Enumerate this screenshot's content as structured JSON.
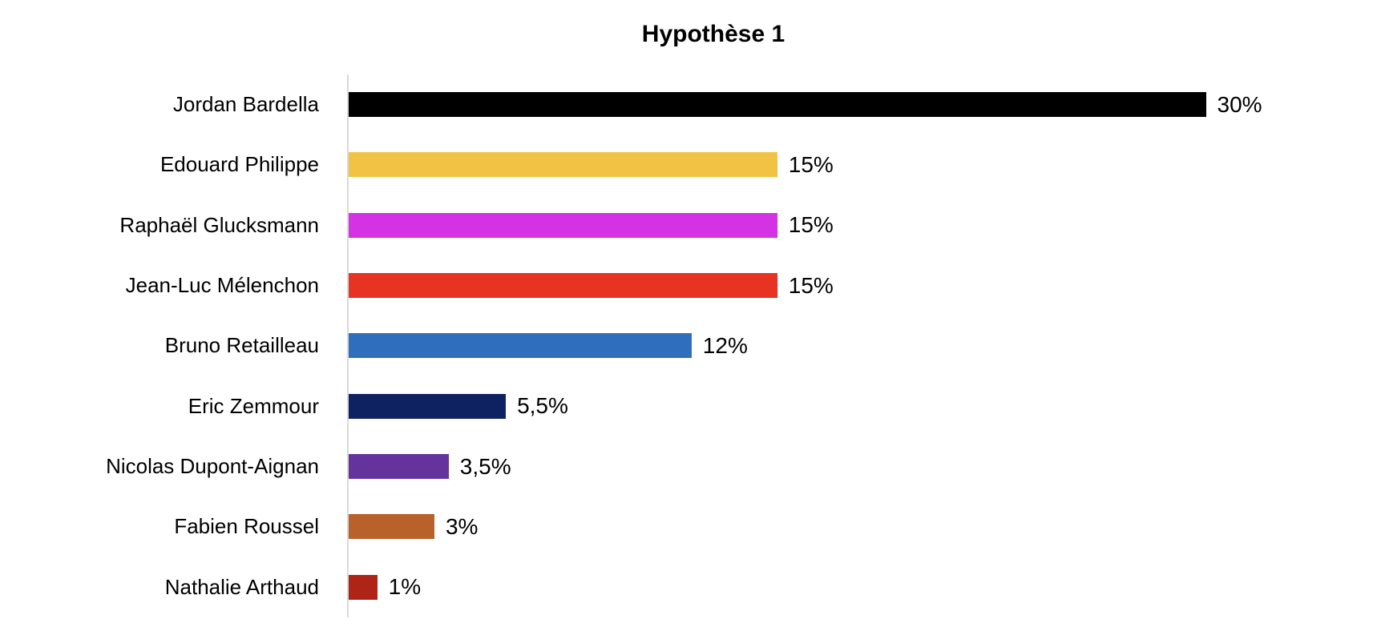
{
  "chart_data": {
    "type": "bar",
    "orientation": "horizontal",
    "title": "Hypothèse 1",
    "categories": [
      "Jordan Bardella",
      "Edouard Philippe",
      "Raphaël Glucksmann",
      "Jean-Luc Mélenchon",
      "Bruno Retailleau",
      "Eric Zemmour",
      "Nicolas Dupont-Aignan",
      "Fabien Roussel",
      "Nathalie Arthaud"
    ],
    "values": [
      30,
      15,
      15,
      15,
      12,
      5.5,
      3.5,
      3,
      1
    ],
    "value_labels": [
      "30%",
      "15%",
      "15%",
      "15%",
      "12%",
      "5,5%",
      "3,5%",
      "3%",
      "1%"
    ],
    "colors": [
      "#000000",
      "#F2C245",
      "#D433E3",
      "#E63323",
      "#2F6EBD",
      "#0E2160",
      "#64349C",
      "#B9612B",
      "#B02418"
    ],
    "xlabel": "",
    "ylabel": "",
    "xlim": [
      0,
      36
    ],
    "grid": false,
    "legend": false,
    "axis_color": "#D9D9D9",
    "background": "#FFFFFF"
  }
}
